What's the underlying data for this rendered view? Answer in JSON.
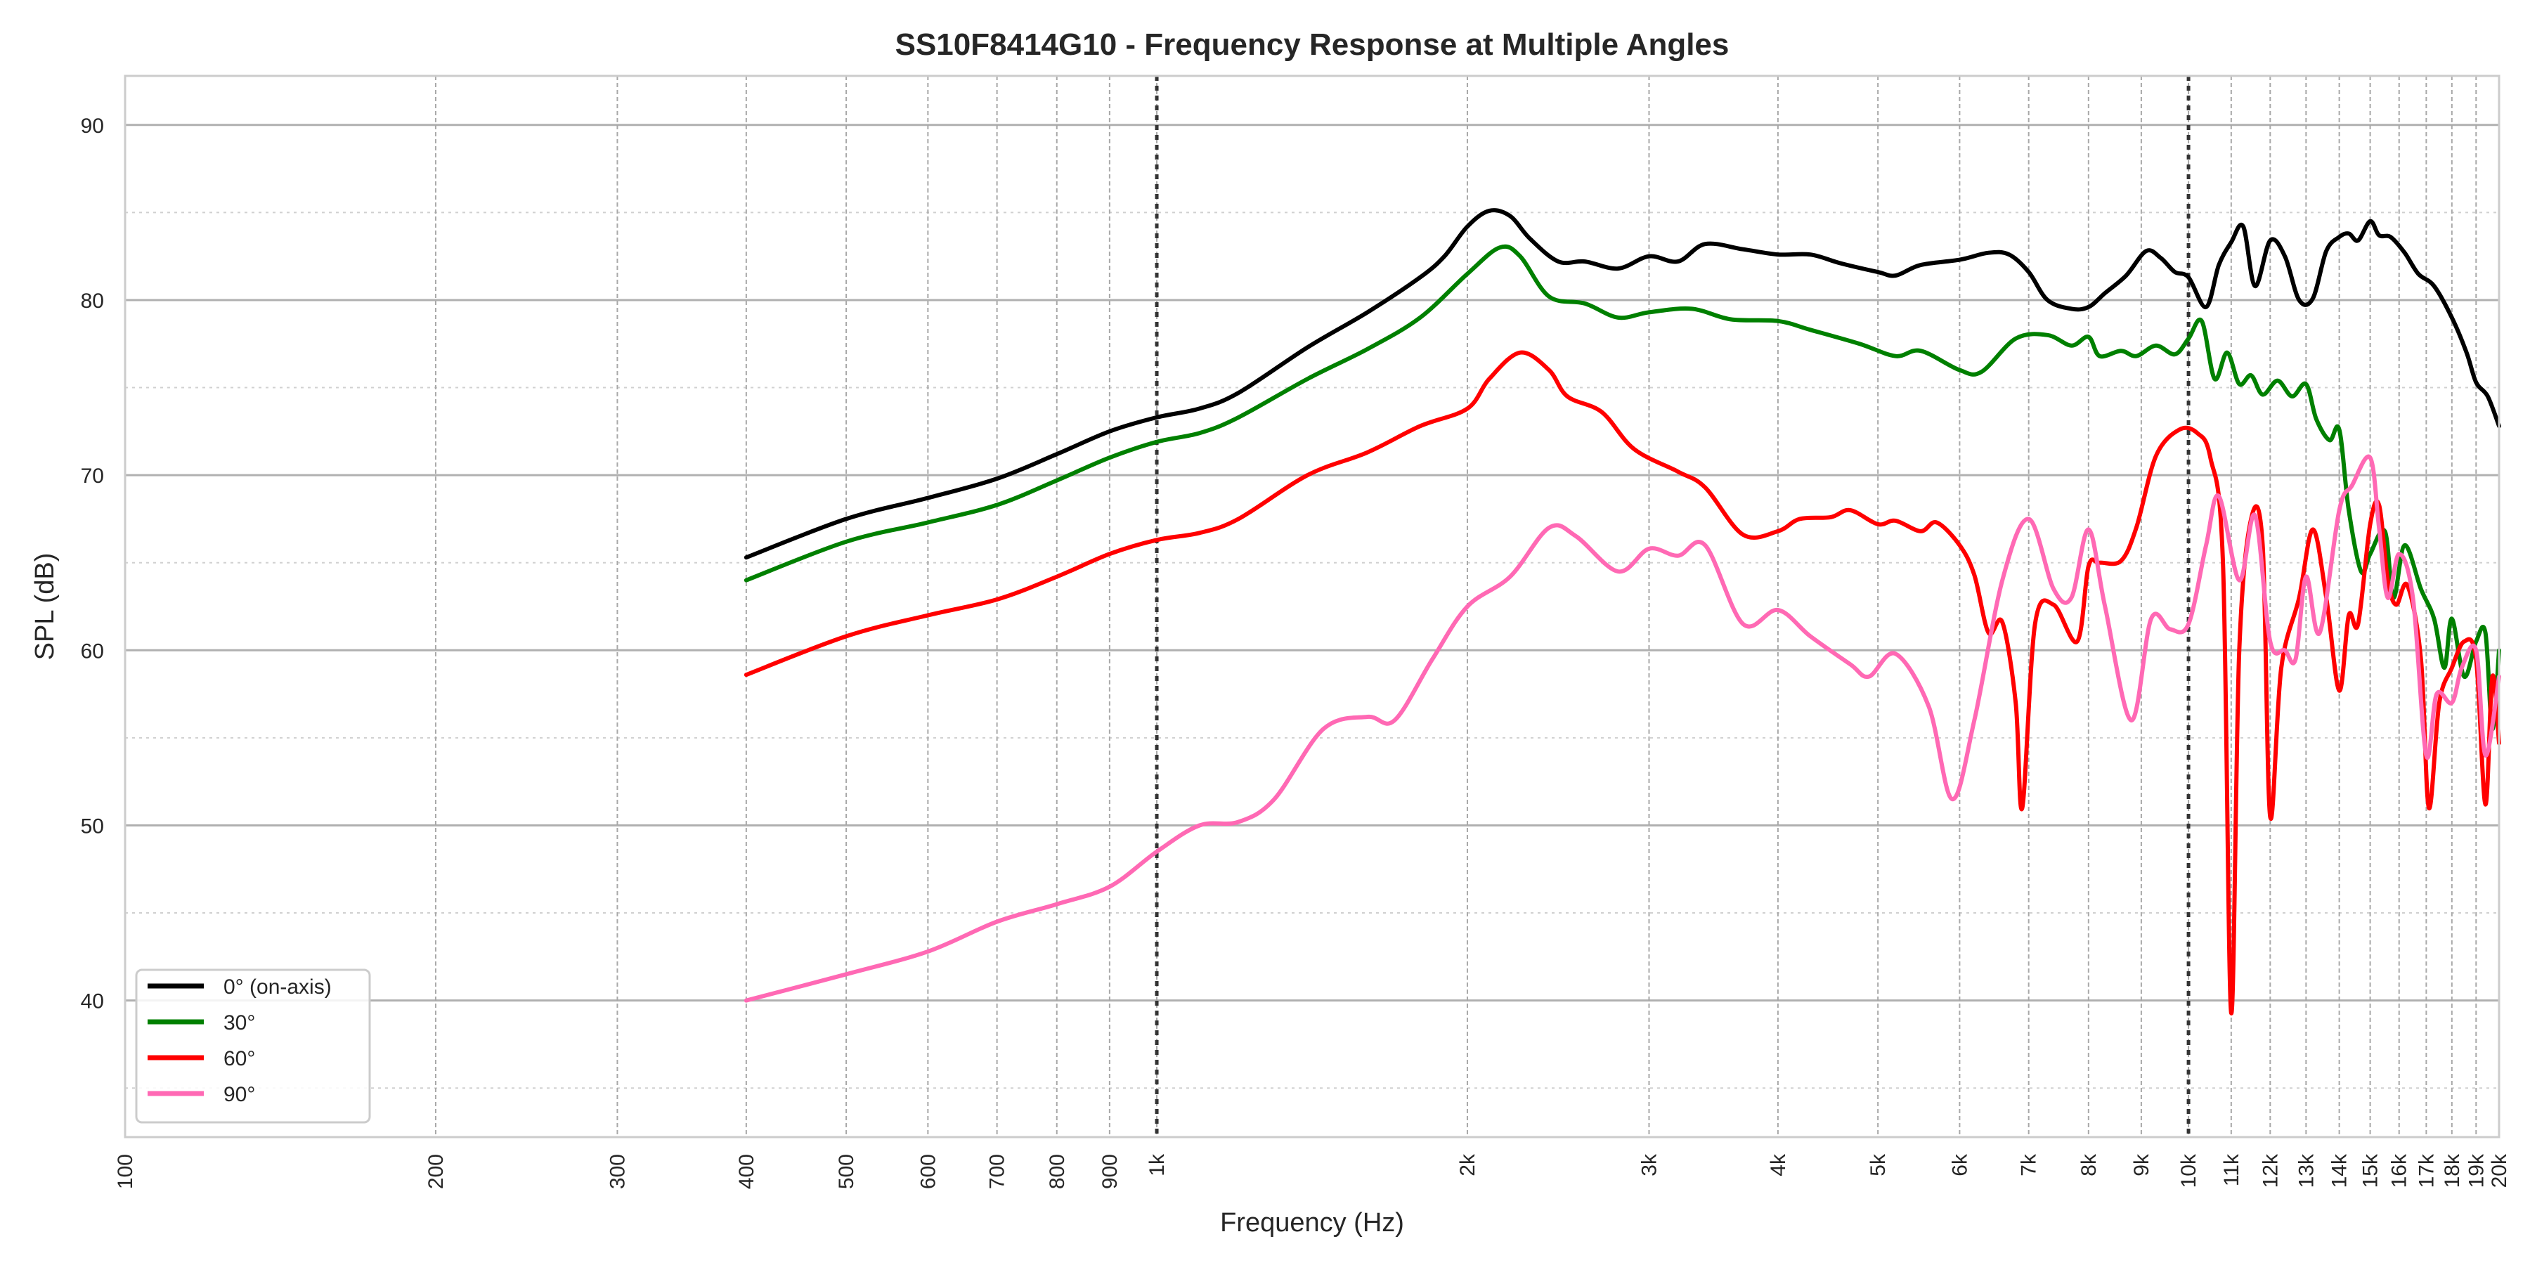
{
  "chart_data": {
    "type": "line",
    "title": "SS10F8414G10 - Frequency Response at Multiple Angles",
    "xlabel": "Frequency (Hz)",
    "ylabel": "SPL (dB)",
    "xscale": "log",
    "xlim": [
      100,
      20000
    ],
    "ylim": [
      32.2,
      92.8
    ],
    "grid": true,
    "legend_position": "lower-left",
    "reference_lines_hz": [
      1000,
      10000
    ],
    "x_ticks": [
      {
        "value": 100,
        "label": "100"
      },
      {
        "value": 200,
        "label": "200"
      },
      {
        "value": 300,
        "label": "300"
      },
      {
        "value": 400,
        "label": "400"
      },
      {
        "value": 500,
        "label": "500"
      },
      {
        "value": 600,
        "label": "600"
      },
      {
        "value": 700,
        "label": "700"
      },
      {
        "value": 800,
        "label": "800"
      },
      {
        "value": 900,
        "label": "900"
      },
      {
        "value": 1000,
        "label": "1k"
      },
      {
        "value": 2000,
        "label": "2k"
      },
      {
        "value": 3000,
        "label": "3k"
      },
      {
        "value": 4000,
        "label": "4k"
      },
      {
        "value": 5000,
        "label": "5k"
      },
      {
        "value": 6000,
        "label": "6k"
      },
      {
        "value": 7000,
        "label": "7k"
      },
      {
        "value": 8000,
        "label": "8k"
      },
      {
        "value": 9000,
        "label": "9k"
      },
      {
        "value": 10000,
        "label": "10k"
      },
      {
        "value": 11000,
        "label": "11k"
      },
      {
        "value": 12000,
        "label": "12k"
      },
      {
        "value": 13000,
        "label": "13k"
      },
      {
        "value": 14000,
        "label": "14k"
      },
      {
        "value": 15000,
        "label": "15k"
      },
      {
        "value": 16000,
        "label": "16k"
      },
      {
        "value": 17000,
        "label": "17k"
      },
      {
        "value": 18000,
        "label": "18k"
      },
      {
        "value": 19000,
        "label": "19k"
      },
      {
        "value": 20000,
        "label": "20k"
      }
    ],
    "y_ticks": [
      {
        "value": 40,
        "label": "40"
      },
      {
        "value": 50,
        "label": "50"
      },
      {
        "value": 60,
        "label": "60"
      },
      {
        "value": 70,
        "label": "70"
      },
      {
        "value": 80,
        "label": "80"
      },
      {
        "value": 90,
        "label": "90"
      }
    ],
    "y_minor_ticks": [
      35,
      45,
      55,
      65,
      75,
      85
    ],
    "series": [
      {
        "name": "0° (on-axis)",
        "color": "#000000",
        "points": [
          [
            400,
            65.3
          ],
          [
            500,
            67.5
          ],
          [
            600,
            68.7
          ],
          [
            700,
            69.8
          ],
          [
            800,
            71.2
          ],
          [
            900,
            72.5
          ],
          [
            1000,
            73.3
          ],
          [
            1100,
            73.8
          ],
          [
            1200,
            74.7
          ],
          [
            1400,
            77.3
          ],
          [
            1600,
            79.3
          ],
          [
            1800,
            81.3
          ],
          [
            1900,
            82.5
          ],
          [
            2000,
            84.2
          ],
          [
            2100,
            85.1
          ],
          [
            2200,
            84.8
          ],
          [
            2300,
            83.5
          ],
          [
            2450,
            82.2
          ],
          [
            2600,
            82.2
          ],
          [
            2800,
            81.8
          ],
          [
            3000,
            82.5
          ],
          [
            3200,
            82.2
          ],
          [
            3400,
            83.2
          ],
          [
            3700,
            82.9
          ],
          [
            4000,
            82.6
          ],
          [
            4300,
            82.6
          ],
          [
            4600,
            82.1
          ],
          [
            5000,
            81.6
          ],
          [
            5200,
            81.4
          ],
          [
            5500,
            82.0
          ],
          [
            6000,
            82.3
          ],
          [
            6400,
            82.7
          ],
          [
            6700,
            82.6
          ],
          [
            7000,
            81.6
          ],
          [
            7300,
            80.0
          ],
          [
            7700,
            79.5
          ],
          [
            8000,
            79.6
          ],
          [
            8300,
            80.4
          ],
          [
            8700,
            81.4
          ],
          [
            9100,
            82.8
          ],
          [
            9400,
            82.4
          ],
          [
            9700,
            81.6
          ],
          [
            10000,
            81.3
          ],
          [
            10400,
            79.6
          ],
          [
            10700,
            82.0
          ],
          [
            11000,
            83.3
          ],
          [
            11300,
            84.2
          ],
          [
            11600,
            80.8
          ],
          [
            12000,
            83.4
          ],
          [
            12400,
            82.5
          ],
          [
            12800,
            80.0
          ],
          [
            13200,
            80.1
          ],
          [
            13600,
            82.8
          ],
          [
            14000,
            83.6
          ],
          [
            14300,
            83.8
          ],
          [
            14600,
            83.4
          ],
          [
            15000,
            84.5
          ],
          [
            15300,
            83.7
          ],
          [
            15700,
            83.6
          ],
          [
            16200,
            82.7
          ],
          [
            16700,
            81.5
          ],
          [
            17300,
            80.8
          ],
          [
            18000,
            79.0
          ],
          [
            18600,
            77.0
          ],
          [
            19000,
            75.3
          ],
          [
            19500,
            74.5
          ],
          [
            20000,
            72.8
          ]
        ]
      },
      {
        "name": "30°",
        "color": "#008000",
        "points": [
          [
            400,
            64.0
          ],
          [
            500,
            66.2
          ],
          [
            600,
            67.3
          ],
          [
            700,
            68.3
          ],
          [
            800,
            69.7
          ],
          [
            900,
            71.0
          ],
          [
            1000,
            71.9
          ],
          [
            1100,
            72.4
          ],
          [
            1200,
            73.3
          ],
          [
            1400,
            75.5
          ],
          [
            1600,
            77.2
          ],
          [
            1800,
            79.0
          ],
          [
            2000,
            81.5
          ],
          [
            2150,
            83.0
          ],
          [
            2250,
            82.5
          ],
          [
            2400,
            80.2
          ],
          [
            2600,
            79.8
          ],
          [
            2800,
            79.0
          ],
          [
            3000,
            79.3
          ],
          [
            3300,
            79.5
          ],
          [
            3600,
            78.9
          ],
          [
            4000,
            78.8
          ],
          [
            4300,
            78.3
          ],
          [
            4800,
            77.5
          ],
          [
            5200,
            76.8
          ],
          [
            5500,
            77.1
          ],
          [
            6000,
            76.0
          ],
          [
            6300,
            75.9
          ],
          [
            6800,
            77.8
          ],
          [
            7300,
            78.0
          ],
          [
            7700,
            77.4
          ],
          [
            8000,
            77.9
          ],
          [
            8200,
            76.8
          ],
          [
            8600,
            77.1
          ],
          [
            8900,
            76.8
          ],
          [
            9300,
            77.4
          ],
          [
            9700,
            76.9
          ],
          [
            10000,
            77.8
          ],
          [
            10300,
            78.8
          ],
          [
            10600,
            75.5
          ],
          [
            10900,
            77.0
          ],
          [
            11200,
            75.2
          ],
          [
            11500,
            75.7
          ],
          [
            11800,
            74.6
          ],
          [
            12200,
            75.4
          ],
          [
            12600,
            74.5
          ],
          [
            13000,
            75.2
          ],
          [
            13300,
            73.2
          ],
          [
            13700,
            72.0
          ],
          [
            14000,
            72.6
          ],
          [
            14300,
            68.0
          ],
          [
            14700,
            64.5
          ],
          [
            15000,
            65.5
          ],
          [
            15500,
            66.8
          ],
          [
            15800,
            63.0
          ],
          [
            16200,
            66.0
          ],
          [
            16800,
            63.5
          ],
          [
            17300,
            61.8
          ],
          [
            17700,
            59.0
          ],
          [
            18000,
            61.8
          ],
          [
            18500,
            58.5
          ],
          [
            19000,
            60.5
          ],
          [
            19400,
            61.0
          ],
          [
            19700,
            55.5
          ],
          [
            20000,
            60.0
          ]
        ]
      },
      {
        "name": "60°",
        "color": "#ff0000",
        "points": [
          [
            400,
            58.6
          ],
          [
            500,
            60.8
          ],
          [
            600,
            62.0
          ],
          [
            700,
            62.9
          ],
          [
            800,
            64.2
          ],
          [
            900,
            65.5
          ],
          [
            1000,
            66.3
          ],
          [
            1100,
            66.7
          ],
          [
            1200,
            67.5
          ],
          [
            1400,
            70.0
          ],
          [
            1600,
            71.3
          ],
          [
            1800,
            72.8
          ],
          [
            2000,
            73.8
          ],
          [
            2100,
            75.5
          ],
          [
            2250,
            77.0
          ],
          [
            2400,
            76.0
          ],
          [
            2500,
            74.5
          ],
          [
            2700,
            73.6
          ],
          [
            2900,
            71.5
          ],
          [
            3200,
            70.2
          ],
          [
            3400,
            69.3
          ],
          [
            3700,
            66.6
          ],
          [
            4000,
            66.8
          ],
          [
            4200,
            67.5
          ],
          [
            4500,
            67.6
          ],
          [
            4700,
            68.0
          ],
          [
            5000,
            67.2
          ],
          [
            5200,
            67.4
          ],
          [
            5500,
            66.8
          ],
          [
            5700,
            67.3
          ],
          [
            6000,
            66.0
          ],
          [
            6200,
            64.3
          ],
          [
            6400,
            61.0
          ],
          [
            6600,
            61.6
          ],
          [
            6800,
            57.0
          ],
          [
            6900,
            51.0
          ],
          [
            7100,
            61.5
          ],
          [
            7400,
            62.6
          ],
          [
            7800,
            60.5
          ],
          [
            8000,
            64.8
          ],
          [
            8200,
            65.0
          ],
          [
            8600,
            65.1
          ],
          [
            8900,
            67.0
          ],
          [
            9300,
            71.1
          ],
          [
            9800,
            72.6
          ],
          [
            10200,
            72.4
          ],
          [
            10500,
            71.0
          ],
          [
            10800,
            65.0
          ],
          [
            11000,
            39.3
          ],
          [
            11200,
            60.0
          ],
          [
            11500,
            67.5
          ],
          [
            11800,
            66.0
          ],
          [
            12000,
            50.5
          ],
          [
            12300,
            59.0
          ],
          [
            12800,
            63.0
          ],
          [
            13200,
            66.9
          ],
          [
            13600,
            63.0
          ],
          [
            14000,
            57.7
          ],
          [
            14300,
            62.0
          ],
          [
            14600,
            61.5
          ],
          [
            15000,
            67.2
          ],
          [
            15300,
            68.3
          ],
          [
            15600,
            64.0
          ],
          [
            15900,
            62.6
          ],
          [
            16300,
            63.7
          ],
          [
            16800,
            59.5
          ],
          [
            17100,
            51.0
          ],
          [
            17500,
            57.0
          ],
          [
            18000,
            59.0
          ],
          [
            18500,
            60.5
          ],
          [
            19000,
            59.5
          ],
          [
            19400,
            51.2
          ],
          [
            19700,
            58.5
          ],
          [
            20000,
            54.7
          ]
        ]
      },
      {
        "name": "90°",
        "color": "#ff69b4",
        "points": [
          [
            400,
            40.0
          ],
          [
            500,
            41.5
          ],
          [
            600,
            42.8
          ],
          [
            700,
            44.5
          ],
          [
            800,
            45.5
          ],
          [
            900,
            46.5
          ],
          [
            1000,
            48.5
          ],
          [
            1100,
            50.0
          ],
          [
            1200,
            50.2
          ],
          [
            1300,
            51.5
          ],
          [
            1450,
            55.5
          ],
          [
            1600,
            56.2
          ],
          [
            1700,
            56.0
          ],
          [
            1850,
            59.5
          ],
          [
            2000,
            62.5
          ],
          [
            2200,
            64.2
          ],
          [
            2400,
            67.0
          ],
          [
            2550,
            66.5
          ],
          [
            2800,
            64.5
          ],
          [
            3000,
            65.8
          ],
          [
            3200,
            65.4
          ],
          [
            3400,
            66.0
          ],
          [
            3700,
            61.5
          ],
          [
            4000,
            62.3
          ],
          [
            4300,
            60.8
          ],
          [
            4700,
            59.2
          ],
          [
            4900,
            58.5
          ],
          [
            5200,
            59.8
          ],
          [
            5600,
            56.8
          ],
          [
            5900,
            51.5
          ],
          [
            6200,
            56.0
          ],
          [
            6600,
            64.0
          ],
          [
            7000,
            67.5
          ],
          [
            7400,
            63.5
          ],
          [
            7700,
            63.0
          ],
          [
            8000,
            66.9
          ],
          [
            8300,
            62.5
          ],
          [
            8800,
            56.0
          ],
          [
            9200,
            61.8
          ],
          [
            9600,
            61.2
          ],
          [
            10000,
            61.5
          ],
          [
            10400,
            66.0
          ],
          [
            10700,
            68.8
          ],
          [
            11200,
            64.0
          ],
          [
            11600,
            67.7
          ],
          [
            12000,
            60.5
          ],
          [
            12400,
            60.0
          ],
          [
            12700,
            59.5
          ],
          [
            13000,
            64.2
          ],
          [
            13400,
            61.0
          ],
          [
            14000,
            68.0
          ],
          [
            14400,
            69.4
          ],
          [
            15000,
            71.0
          ],
          [
            15300,
            67.0
          ],
          [
            15600,
            63.0
          ],
          [
            16000,
            65.5
          ],
          [
            16500,
            63.0
          ],
          [
            17000,
            54.0
          ],
          [
            17400,
            57.5
          ],
          [
            18000,
            57.0
          ],
          [
            18400,
            59.0
          ],
          [
            19000,
            60.0
          ],
          [
            19400,
            54.0
          ],
          [
            20000,
            58.5
          ]
        ]
      }
    ]
  }
}
